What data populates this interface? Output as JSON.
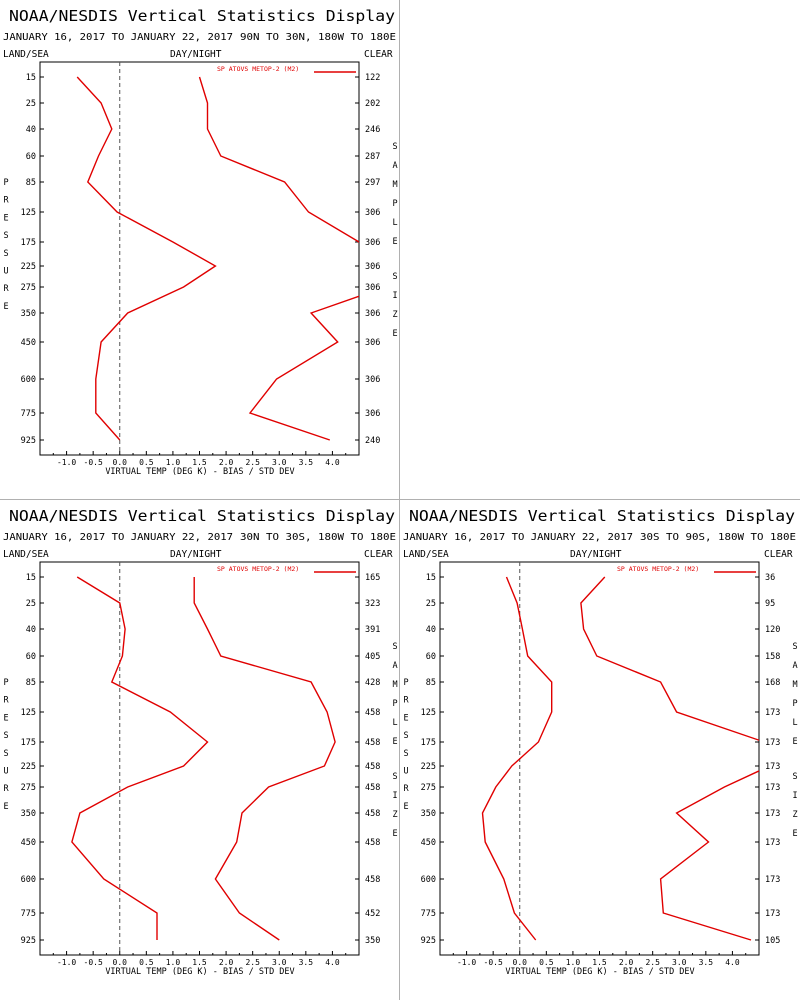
{
  "common": {
    "title": "NOAA/NESDIS Vertical Statistics Display",
    "dates": "JANUARY 16, 2017 TO JANUARY 22, 2017",
    "land_sea": "LAND/SEA",
    "day_night": "DAY/NIGHT",
    "clear": "CLEAR",
    "legend": "SP ATOVS METOP-2 (M2)",
    "pressure_label": "PRESSURE",
    "sample_size_label": "SAMPLE SIZE",
    "xlabel": "VIRTUAL TEMP (DEG K) - BIAS / STD DEV",
    "line_color": "#e00000",
    "zero_line_color": "#555555"
  },
  "chart_data": [
    {
      "type": "line",
      "region": "90N TO 30N, 180W TO 180E",
      "xlim": [
        -1.5,
        4.5
      ],
      "x_ticks": [
        "-1.0",
        "-0.5",
        "0.0",
        "0.5",
        "1.0",
        "1.5",
        "2.0",
        "2.5",
        "3.0",
        "3.5",
        "4.0"
      ],
      "y_levels": [
        "15",
        "25",
        "40",
        "60",
        "85",
        "125",
        "175",
        "225",
        "275",
        "350",
        "450",
        "600",
        "775",
        "925"
      ],
      "sample_size": [
        "122",
        "202",
        "246",
        "287",
        "297",
        "306",
        "306",
        "306",
        "306",
        "306",
        "306",
        "306",
        "306",
        "240"
      ],
      "series": [
        {
          "values": [
            -0.8,
            -0.35,
            -0.15,
            -0.4,
            -0.6,
            -0.05,
            1.0,
            1.8,
            1.2,
            0.15,
            -0.35,
            -0.45,
            -0.45,
            0.0
          ]
        },
        {
          "values": [
            1.5,
            1.65,
            1.65,
            1.9,
            3.1,
            3.55,
            4.5,
            6.0,
            5.0,
            3.6,
            4.1,
            2.95,
            2.45,
            3.95
          ]
        }
      ]
    },
    {
      "type": "line",
      "region": "30N TO 30S, 180W TO 180E",
      "xlim": [
        -1.5,
        4.5
      ],
      "x_ticks": [
        "-1.0",
        "-0.5",
        "0.0",
        "0.5",
        "1.0",
        "1.5",
        "2.0",
        "2.5",
        "3.0",
        "3.5",
        "4.0"
      ],
      "y_levels": [
        "15",
        "25",
        "40",
        "60",
        "85",
        "125",
        "175",
        "225",
        "275",
        "350",
        "450",
        "600",
        "775",
        "925"
      ],
      "sample_size": [
        "165",
        "323",
        "391",
        "405",
        "428",
        "458",
        "458",
        "458",
        "458",
        "458",
        "458",
        "458",
        "452",
        "350"
      ],
      "series": [
        {
          "values": [
            -0.8,
            0.0,
            0.1,
            0.05,
            -0.15,
            0.95,
            1.65,
            1.2,
            0.15,
            -0.75,
            -0.9,
            -0.3,
            0.7,
            0.7
          ]
        },
        {
          "values": [
            1.4,
            1.4,
            1.65,
            1.9,
            3.6,
            3.9,
            4.05,
            3.85,
            2.8,
            2.3,
            2.2,
            1.8,
            2.25,
            3.0
          ]
        }
      ]
    },
    {
      "type": "line",
      "region": "30S TO 90S, 180W TO 180E",
      "xlim": [
        -1.5,
        4.5
      ],
      "x_ticks": [
        "-1.0",
        "-0.5",
        "0.0",
        "0.5",
        "1.0",
        "1.5",
        "2.0",
        "2.5",
        "3.0",
        "3.5",
        "4.0"
      ],
      "y_levels": [
        "15",
        "25",
        "40",
        "60",
        "85",
        "125",
        "175",
        "225",
        "275",
        "350",
        "450",
        "600",
        "775",
        "925"
      ],
      "sample_size": [
        "36",
        "95",
        "120",
        "158",
        "168",
        "173",
        "173",
        "173",
        "173",
        "173",
        "173",
        "173",
        "173",
        "105"
      ],
      "series": [
        {
          "values": [
            -0.25,
            -0.05,
            0.05,
            0.15,
            0.6,
            0.6,
            0.35,
            -0.15,
            -0.45,
            -0.7,
            -0.65,
            -0.3,
            -0.1,
            0.3
          ]
        },
        {
          "values": [
            1.6,
            1.15,
            1.2,
            1.45,
            2.65,
            2.95,
            4.6,
            4.7,
            3.85,
            2.95,
            3.55,
            2.65,
            2.7,
            4.35
          ]
        }
      ]
    }
  ]
}
